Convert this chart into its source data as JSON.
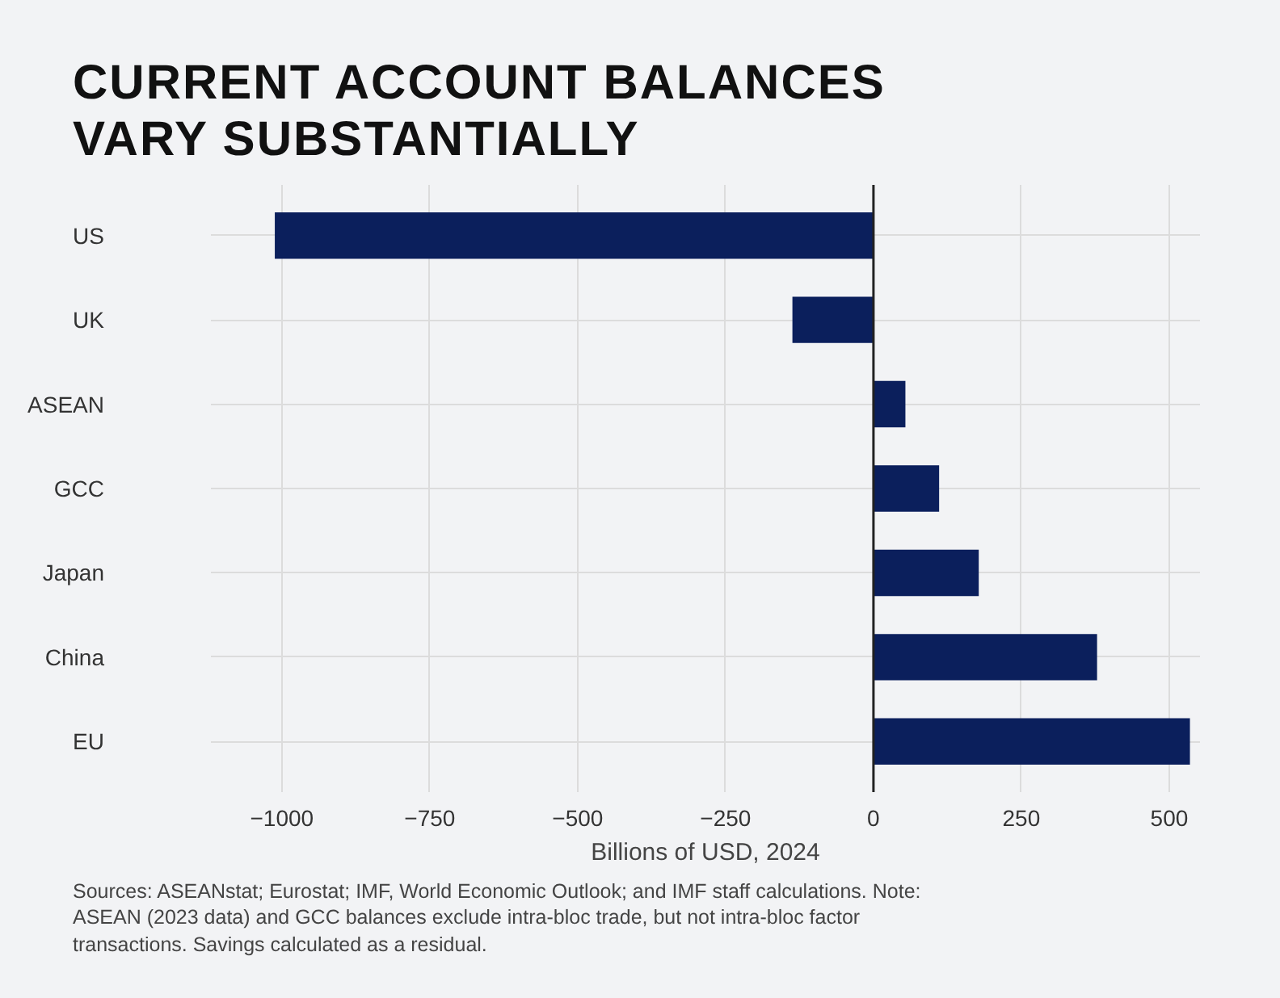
{
  "chart_data": {
    "type": "bar",
    "orientation": "horizontal",
    "title": "CURRENT ACCOUNT BALANCES\nVARY SUBSTANTIALLY",
    "xlabel": "Billions of USD, 2024",
    "categories": [
      "US",
      "UK",
      "ASEAN",
      "GCC",
      "Japan",
      "China",
      "EU"
    ],
    "values": [
      -1012,
      -137,
      54,
      111,
      178,
      378,
      535
    ],
    "color": "#0b1f5c",
    "xlim": [
      -1120,
      552
    ],
    "xticks": [
      -1000,
      -750,
      -500,
      -250,
      0,
      250,
      500
    ],
    "grid": true,
    "ref_lines": [
      {
        "axis": "x",
        "value": 0,
        "color": "#222222"
      }
    ],
    "annotations": [
      "Sources: ASEANstat; Eurostat; IMF, World Economic Outlook; and IMF staff calculations. Note: ASEAN (2023 data) and GCC balances exclude intra-bloc trade, but not intra-bloc factor transactions. Savings calculated as a residual."
    ]
  }
}
